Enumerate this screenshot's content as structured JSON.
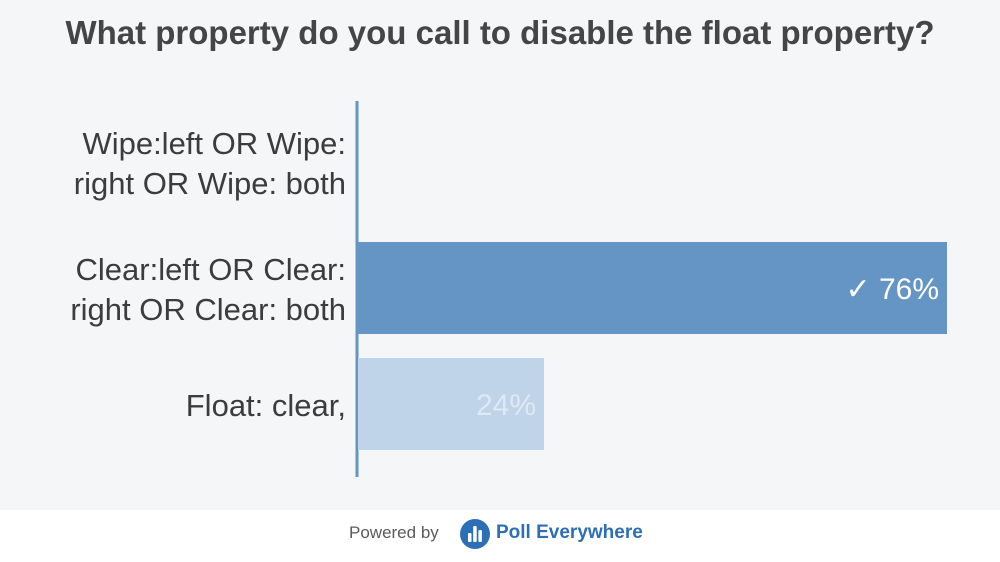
{
  "title": "What property do you call to disable the float property?",
  "chart_data": {
    "type": "bar",
    "orientation": "horizontal",
    "categories": [
      [
        "Wipe:left OR Wipe:",
        "right OR Wipe: both"
      ],
      [
        "Clear:left OR Clear:",
        "right OR Clear: both"
      ],
      [
        "Float: clear,"
      ]
    ],
    "values": [
      0,
      76,
      24
    ],
    "value_labels": [
      "",
      "76%",
      "24%"
    ],
    "correct": [
      false,
      true,
      false
    ],
    "check_mark": "✓",
    "xlim": [
      0,
      100
    ],
    "grid": false,
    "colors": {
      "bar": "#6495c5",
      "bar_muted": "#bfd3e9",
      "label_on_bar": "#ffffff",
      "label_on_muted": "#dfe9f4",
      "axis": "#6495c5",
      "category_text": "#3c3c3c"
    }
  },
  "footer": {
    "powered_by": "Powered by",
    "brand": "Poll Everywhere",
    "brand_icon": "poll-everywhere-logo-icon"
  }
}
